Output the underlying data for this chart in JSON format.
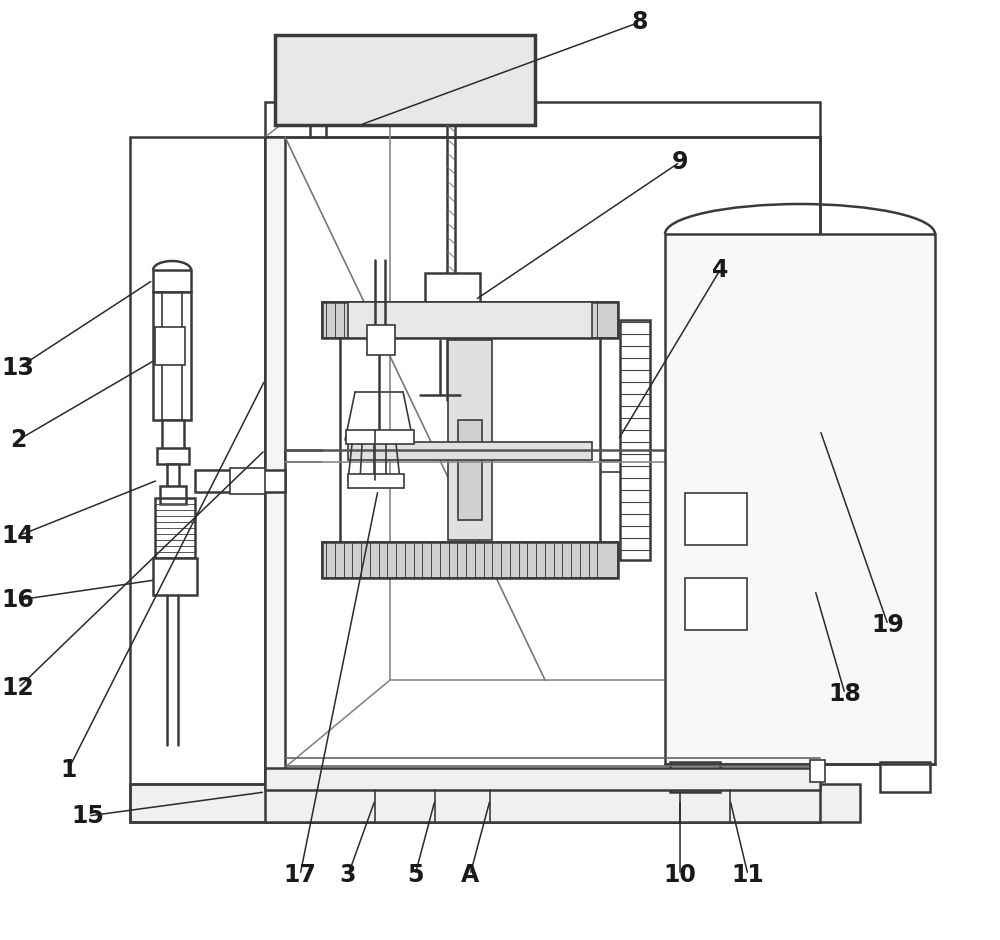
{
  "bg_color": "#ffffff",
  "line_color": "#3a3a3a",
  "fig_width": 10.0,
  "fig_height": 9.4,
  "dpi": 100
}
